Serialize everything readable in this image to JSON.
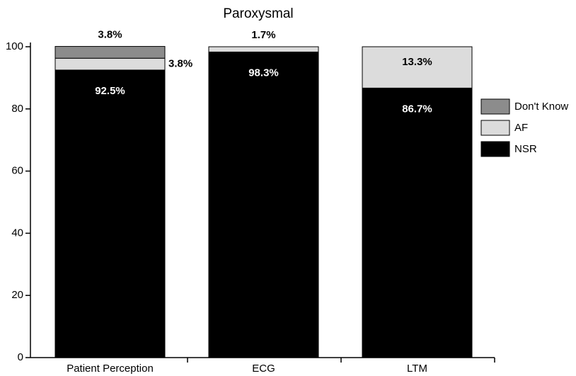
{
  "chart_data": {
    "type": "stacked_bar",
    "title": "Paroxysmal",
    "categories": [
      "Patient Perception",
      "ECG",
      "LTM"
    ],
    "series": [
      {
        "name": "NSR",
        "color": "#000000",
        "values": [
          92.5,
          98.3,
          86.7
        ],
        "value_labels": [
          "92.5%",
          "98.3%",
          "86.7%"
        ]
      },
      {
        "name": "AF",
        "color": "#dcdcdc",
        "values": [
          3.8,
          1.7,
          13.3
        ],
        "value_labels": [
          "3.8%",
          "1.7%",
          "13.3%"
        ]
      },
      {
        "name": "Don't Know",
        "color": "#8c8c8c",
        "values": [
          3.8,
          0,
          0
        ],
        "value_labels": [
          "3.8%",
          null,
          null
        ]
      }
    ],
    "ylim": [
      0,
      100
    ],
    "yticks": [
      0,
      20,
      40,
      60,
      80,
      100
    ],
    "grid": false,
    "legend": "right"
  }
}
